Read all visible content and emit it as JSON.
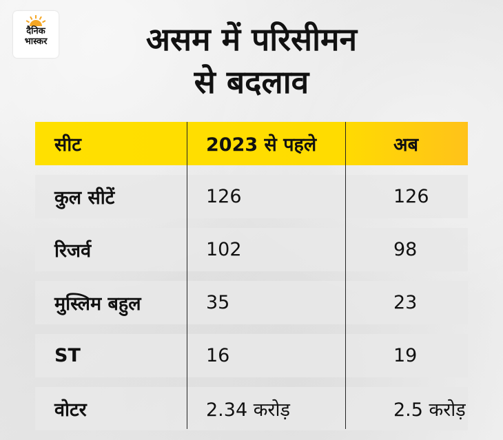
{
  "logo": {
    "line1": "दैनिक",
    "line2": "भास्कर",
    "icon": "sun-icon",
    "color": "#f5a623"
  },
  "title": {
    "line1": "असम में परिसीमन",
    "line2": "से बदलाव"
  },
  "table": {
    "headers": [
      "सीट",
      "2023 से पहले",
      "अब"
    ],
    "rows": [
      [
        "कुल सीटें",
        "126",
        "126"
      ],
      [
        "रिजर्व",
        "102",
        "98"
      ],
      [
        "मुस्लिम बहुल",
        "35",
        "23"
      ],
      [
        "ST",
        "16",
        "19"
      ],
      [
        "वोटर",
        "2.34 करोड़",
        "2.5 करोड़"
      ]
    ]
  },
  "colors": {
    "header_bg": "#ffdc00",
    "row_bg": "#e8e8e8",
    "text": "#111111"
  }
}
